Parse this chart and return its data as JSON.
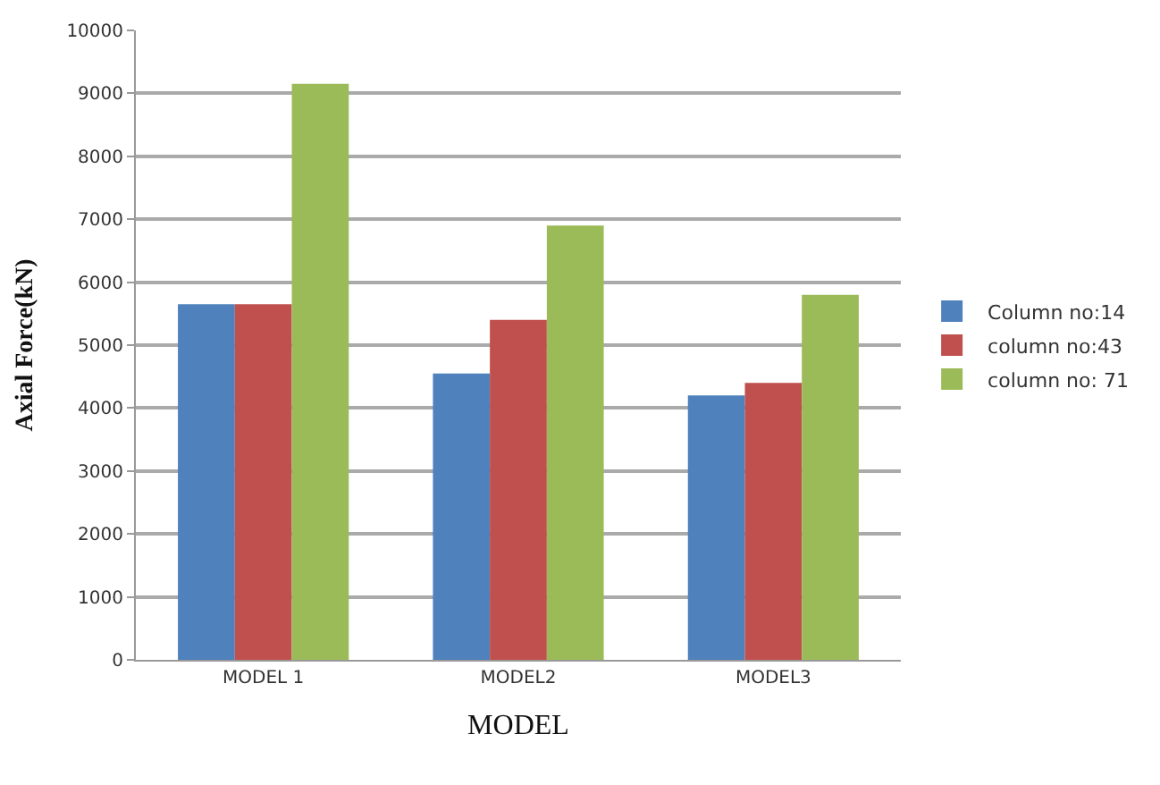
{
  "chart_data": {
    "type": "bar",
    "xlabel": "MODEL",
    "ylabel": "Axial Force(kN)",
    "categories": [
      "MODEL 1",
      "MODEL2",
      "MODEL3"
    ],
    "series": [
      {
        "name": "Column no:14",
        "color": "#4f81bd",
        "values": [
          5650,
          4550,
          4200
        ]
      },
      {
        "name": "column no:43",
        "color": "#c0504d",
        "values": [
          5650,
          5400,
          4400
        ]
      },
      {
        "name": "column no: 71",
        "color": "#9bbb59",
        "values": [
          9150,
          6900,
          5800
        ]
      }
    ],
    "ylim": [
      0,
      10000
    ],
    "yticks": [
      0,
      1000,
      2000,
      3000,
      4000,
      5000,
      6000,
      7000,
      8000,
      9000,
      10000
    ],
    "grid": "y",
    "legend": "right"
  }
}
